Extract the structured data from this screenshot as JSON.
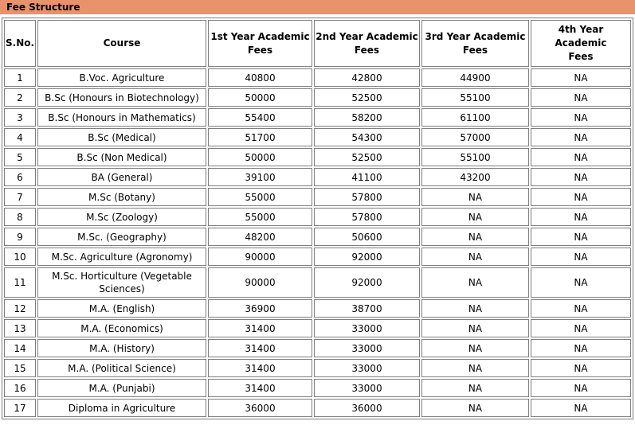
{
  "colors": {
    "accent": "#E8936C",
    "table_border": "#7f7f7f",
    "title_text": "#000000"
  },
  "header": {
    "title": "Fee Structure"
  },
  "table": {
    "columns": [
      {
        "id": "sno",
        "lines": [
          "S.No."
        ]
      },
      {
        "id": "course",
        "lines": [
          "Course"
        ]
      },
      {
        "id": "y1",
        "lines": [
          "1st Year Academic",
          "Fees"
        ]
      },
      {
        "id": "y2",
        "lines": [
          "2nd Year Academic",
          "Fees"
        ]
      },
      {
        "id": "y3",
        "lines": [
          "3rd Year Academic",
          "Fees"
        ]
      },
      {
        "id": "y4",
        "lines": [
          "4th Year Academic",
          "Fees"
        ]
      }
    ],
    "rows": [
      {
        "sno": "1",
        "course": "B.Voc. Agriculture",
        "fees": [
          "40800",
          "42800",
          "44900",
          "NA"
        ]
      },
      {
        "sno": "2",
        "course": "B.Sc (Honours in Biotechnology)",
        "fees": [
          "50000",
          "52500",
          "55100",
          "NA"
        ]
      },
      {
        "sno": "3",
        "course": "B.Sc (Honours in Mathematics)",
        "fees": [
          "55400",
          "58200",
          "61100",
          "NA"
        ]
      },
      {
        "sno": "4",
        "course": "B.Sc (Medical)",
        "fees": [
          "51700",
          "54300",
          "57000",
          "NA"
        ]
      },
      {
        "sno": "5",
        "course": "B.Sc (Non Medical)",
        "fees": [
          "50000",
          "52500",
          "55100",
          "NA"
        ]
      },
      {
        "sno": "6",
        "course": "BA (General)",
        "fees": [
          "39100",
          "41100",
          "43200",
          "NA"
        ]
      },
      {
        "sno": "7",
        "course": "M.Sc (Botany)",
        "fees": [
          "55000",
          "57800",
          "NA",
          "NA"
        ]
      },
      {
        "sno": "8",
        "course": "M.Sc (Zoology)",
        "fees": [
          "55000",
          "57800",
          "NA",
          "NA"
        ]
      },
      {
        "sno": "9",
        "course": "M.Sc. (Geography)",
        "fees": [
          "48200",
          "50600",
          "NA",
          "NA"
        ]
      },
      {
        "sno": "10",
        "course": "M.Sc. Agriculture (Agronomy)",
        "fees": [
          "90000",
          "92000",
          "NA",
          "NA"
        ]
      },
      {
        "sno": "11",
        "course": "M.Sc. Horticulture (Vegetable Sciences)",
        "fees": [
          "90000",
          "92000",
          "NA",
          "NA"
        ]
      },
      {
        "sno": "12",
        "course": "M.A. (English)",
        "fees": [
          "36900",
          "38700",
          "NA",
          "NA"
        ]
      },
      {
        "sno": "13",
        "course": "M.A. (Economics)",
        "fees": [
          "31400",
          "33000",
          "NA",
          "NA"
        ]
      },
      {
        "sno": "14",
        "course": "M.A. (History)",
        "fees": [
          "31400",
          "33000",
          "NA",
          "NA"
        ]
      },
      {
        "sno": "15",
        "course": "M.A. (Political Science)",
        "fees": [
          "31400",
          "33000",
          "NA",
          "NA"
        ]
      },
      {
        "sno": "16",
        "course": "M.A. (Punjabi)",
        "fees": [
          "31400",
          "33000",
          "NA",
          "NA"
        ]
      },
      {
        "sno": "17",
        "course": "Diploma in Agriculture",
        "fees": [
          "36000",
          "36000",
          "NA",
          "NA"
        ]
      }
    ]
  }
}
